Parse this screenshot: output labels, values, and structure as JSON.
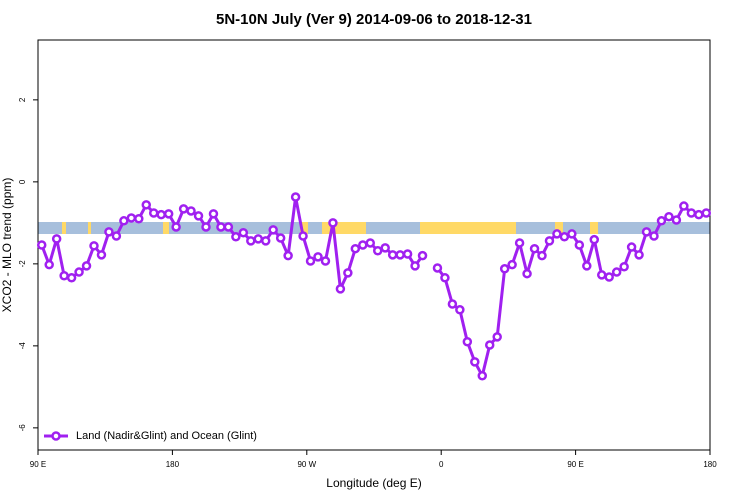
{
  "chart_data": {
    "type": "line",
    "title": "5N-10N July (Ver 9)   2014-09-06 to 2018-12-31",
    "x_label": "Longitude (deg E)",
    "y_label": "XCO2 - MLO trend (ppm)",
    "x": [
      92.5,
      97.5,
      102.5,
      107.5,
      112.5,
      117.5,
      122.5,
      127.5,
      132.5,
      137.5,
      142.5,
      147.5,
      152.5,
      157.5,
      162.5,
      167.5,
      172.5,
      177.5,
      182.5,
      187.5,
      192.5,
      197.5,
      202.5,
      207.5,
      212.5,
      217.5,
      222.5,
      227.5,
      232.5,
      237.5,
      242.5,
      247.5,
      252.5,
      257.5,
      262.5,
      267.5,
      272.5,
      277.5,
      282.5,
      287.5,
      292.5,
      297.5,
      302.5,
      307.5,
      312.5,
      317.5,
      322.5,
      327.5,
      332.5,
      337.5,
      342.5,
      347.5,
      352.5,
      357.5,
      362.5,
      367.5,
      372.5,
      377.5,
      382.5,
      387.5,
      392.5,
      397.5,
      402.5,
      407.5,
      412.5,
      417.5,
      422.5,
      427.5,
      432.5,
      437.5,
      442.5,
      447.5,
      452.5,
      457.5,
      462.5,
      467.5,
      472.5,
      477.5,
      482.5,
      487.5,
      492.5,
      497.5,
      502.5,
      507.5,
      512.5,
      517.5,
      522.5,
      527.5,
      532.5,
      537.5
    ],
    "series": [
      {
        "name": "Land (Nadir&Glint) and Ocean (Glint)",
        "color": "#a020f0",
        "values": [
          -1.54,
          -2.02,
          -1.39,
          -2.29,
          -2.34,
          -2.2,
          -2.05,
          -1.56,
          -1.78,
          -1.22,
          -1.32,
          -0.95,
          -0.88,
          -0.9,
          -0.56,
          -0.76,
          -0.8,
          -0.78,
          -1.1,
          -0.66,
          -0.71,
          -0.83,
          -1.1,
          -0.78,
          -1.1,
          -1.1,
          -1.34,
          -1.24,
          -1.44,
          -1.39,
          -1.44,
          -1.17,
          -1.37,
          -1.8,
          -0.37,
          -1.32,
          -1.93,
          -1.83,
          -1.93,
          -1.0,
          -2.61,
          -2.22,
          -1.63,
          -1.54,
          -1.49,
          -1.68,
          -1.61,
          -1.78,
          -1.78,
          -1.76,
          -2.05,
          -1.8,
          null,
          -2.1,
          -2.34,
          -2.98,
          -3.12,
          -3.9,
          -4.39,
          -4.73,
          -3.98,
          -3.78,
          -2.12,
          -2.02,
          -1.49,
          -2.24,
          -1.63,
          -1.8,
          -1.44,
          -1.27,
          -1.34,
          -1.27,
          -1.54,
          -2.05,
          -1.41,
          -2.27,
          -2.32,
          -2.2,
          -2.07,
          -1.59,
          -1.78,
          -1.22,
          -1.32,
          -0.95,
          -0.85,
          -0.93,
          -0.59,
          -0.76,
          -0.8,
          -0.76
        ]
      }
    ],
    "xlim": [
      90,
      540
    ],
    "xticks": [
      {
        "value": 90,
        "label": "90 E"
      },
      180,
      {
        "value": 270,
        "label": "90 W"
      },
      {
        "value": 360,
        "label": "0"
      },
      {
        "value": 450,
        "label": "90 E"
      },
      {
        "value": 540,
        "label": "180"
      }
    ],
    "ylim": [
      -6.54,
      3.46
    ],
    "yticks": [
      -6,
      -4,
      -2,
      0,
      2
    ],
    "legend": "bottomleft"
  }
}
